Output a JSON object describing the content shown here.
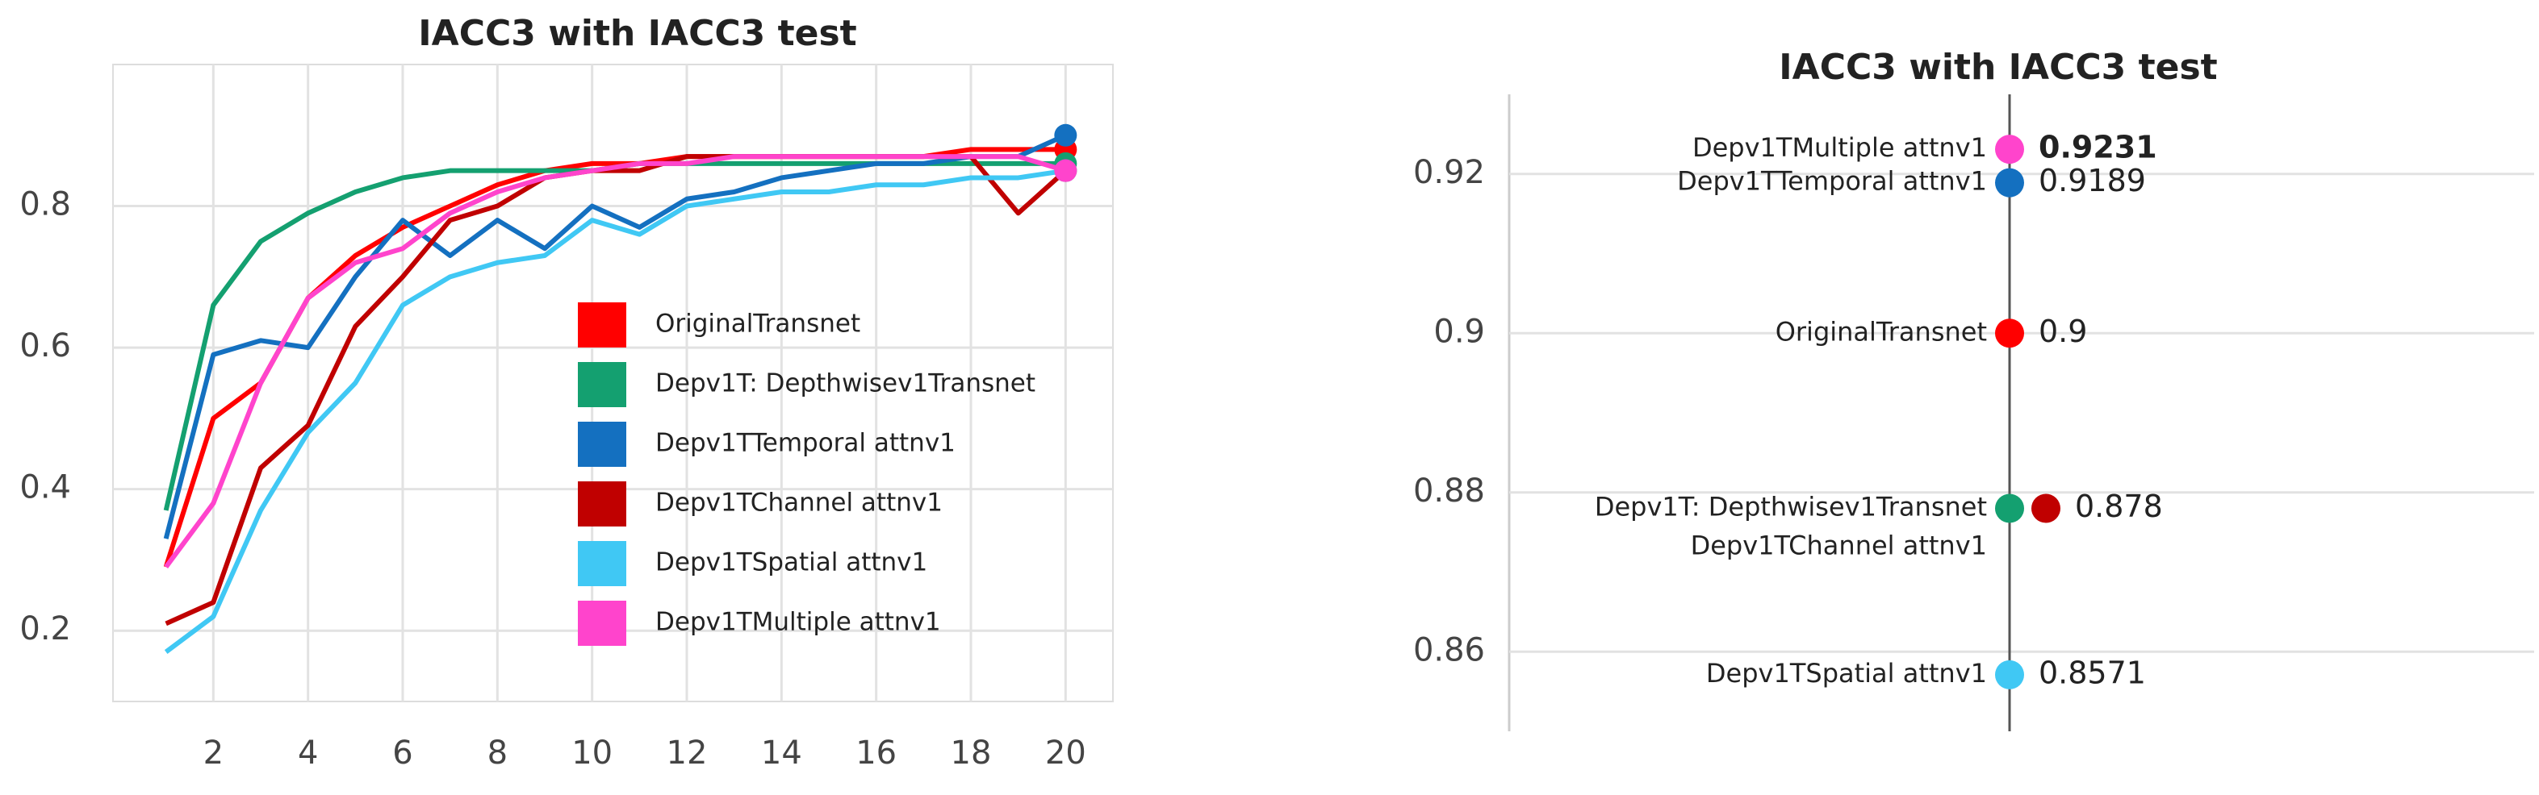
{
  "chart_data": [
    {
      "type": "line",
      "title": "IACC3 with IACC3 test",
      "x": [
        1,
        2,
        3,
        4,
        5,
        6,
        7,
        8,
        9,
        10,
        11,
        12,
        13,
        14,
        15,
        16,
        17,
        18,
        19,
        20
      ],
      "xlim": [
        0,
        21
      ],
      "xticks": [
        2,
        4,
        6,
        8,
        10,
        12,
        14,
        16,
        18,
        20
      ],
      "ylim": [
        0.1,
        1.0
      ],
      "yticks": [
        0.2,
        0.4,
        0.6,
        0.8
      ],
      "grid": true,
      "legend": "lower right",
      "series": [
        {
          "name": "OriginalTransnet",
          "color": "#ff0000",
          "values": [
            0.29,
            0.5,
            0.55,
            0.67,
            0.73,
            0.77,
            0.8,
            0.83,
            0.85,
            0.86,
            0.86,
            0.87,
            0.87,
            0.87,
            0.87,
            0.87,
            0.87,
            0.88,
            0.88,
            0.88
          ]
        },
        {
          "name": "Depv1T: Depthwisev1Transnet",
          "color": "#14a070",
          "values": [
            0.37,
            0.66,
            0.75,
            0.79,
            0.82,
            0.84,
            0.85,
            0.85,
            0.85,
            0.85,
            0.86,
            0.86,
            0.86,
            0.86,
            0.86,
            0.86,
            0.86,
            0.86,
            0.86,
            0.86
          ]
        },
        {
          "name": "Depv1TTemporal attnv1",
          "color": "#1470c0",
          "values": [
            0.33,
            0.59,
            0.61,
            0.6,
            0.7,
            0.78,
            0.73,
            0.78,
            0.74,
            0.8,
            0.77,
            0.81,
            0.82,
            0.84,
            0.85,
            0.86,
            0.86,
            0.87,
            0.87,
            0.9
          ]
        },
        {
          "name": "Depv1TChannel attnv1",
          "color": "#c00000",
          "values": [
            0.21,
            0.24,
            0.43,
            0.49,
            0.63,
            0.7,
            0.78,
            0.8,
            0.84,
            0.85,
            0.85,
            0.87,
            0.87,
            0.87,
            0.87,
            0.87,
            0.87,
            0.87,
            0.79,
            0.85
          ]
        },
        {
          "name": "Depv1TSpatial attnv1",
          "color": "#40c8f4",
          "values": [
            0.17,
            0.22,
            0.37,
            0.48,
            0.55,
            0.66,
            0.7,
            0.72,
            0.73,
            0.78,
            0.76,
            0.8,
            0.81,
            0.82,
            0.82,
            0.83,
            0.83,
            0.84,
            0.84,
            0.85
          ]
        },
        {
          "name": "Depv1TMultiple attnv1",
          "color": "#ff44cc",
          "values": [
            0.29,
            0.38,
            0.55,
            0.67,
            0.72,
            0.74,
            0.79,
            0.82,
            0.84,
            0.85,
            0.86,
            0.86,
            0.87,
            0.87,
            0.87,
            0.87,
            0.87,
            0.87,
            0.87,
            0.85
          ]
        }
      ]
    },
    {
      "type": "dot",
      "title": "IACC3 with IACC3 test",
      "ylim": [
        0.85,
        0.93
      ],
      "yticks": [
        0.86,
        0.88,
        0.9,
        0.92
      ],
      "grid": true,
      "categories": [
        "Depv1TMultiple attnv1",
        "Depv1TTemporal attnv1",
        "OriginalTransnet",
        "Depv1T: Depthwisev1Transnet",
        "Depv1TChannel attnv1",
        "Depv1TSpatial attnv1"
      ],
      "values": [
        0.9231,
        0.9189,
        0.9,
        0.878,
        0.878,
        0.8571
      ],
      "colors": [
        "#ff44cc",
        "#1470c0",
        "#ff0000",
        "#14a070",
        "#c00000",
        "#40c8f4"
      ]
    }
  ]
}
